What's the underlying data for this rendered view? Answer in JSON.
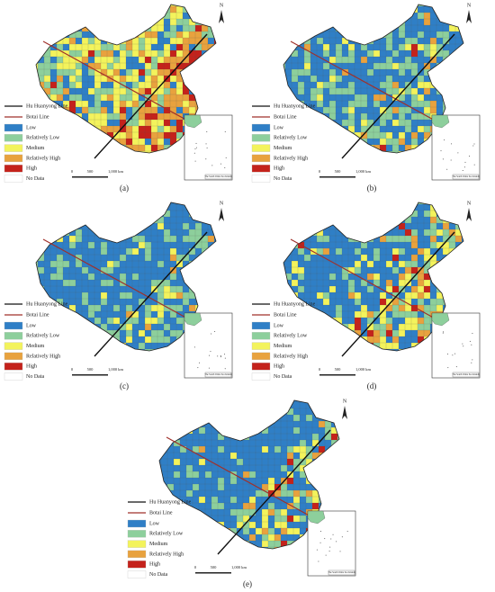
{
  "panels": [
    {
      "label": "(a)"
    },
    {
      "label": "(b)"
    },
    {
      "label": "(c)"
    },
    {
      "label": "(d)"
    },
    {
      "label": "(e)"
    }
  ],
  "legend": {
    "lines": [
      {
        "label": "Hu Huanyong Line",
        "color": "#111111"
      },
      {
        "label": "Botai Line",
        "color": "#a0302a"
      }
    ],
    "classes": [
      {
        "label": "Low",
        "color": "#2f7fc6"
      },
      {
        "label": "Relatively Low",
        "color": "#8dcf9c"
      },
      {
        "label": "Medium",
        "color": "#f3f35c"
      },
      {
        "label": "Relatively High",
        "color": "#e8a23e"
      },
      {
        "label": "High",
        "color": "#c4221b"
      },
      {
        "label": "No Data",
        "color": "#ffffff"
      }
    ]
  },
  "scale_labels": [
    "0",
    "500",
    "1,000 km"
  ],
  "north": "N",
  "inset_caption": "The South China Sea Islands"
}
